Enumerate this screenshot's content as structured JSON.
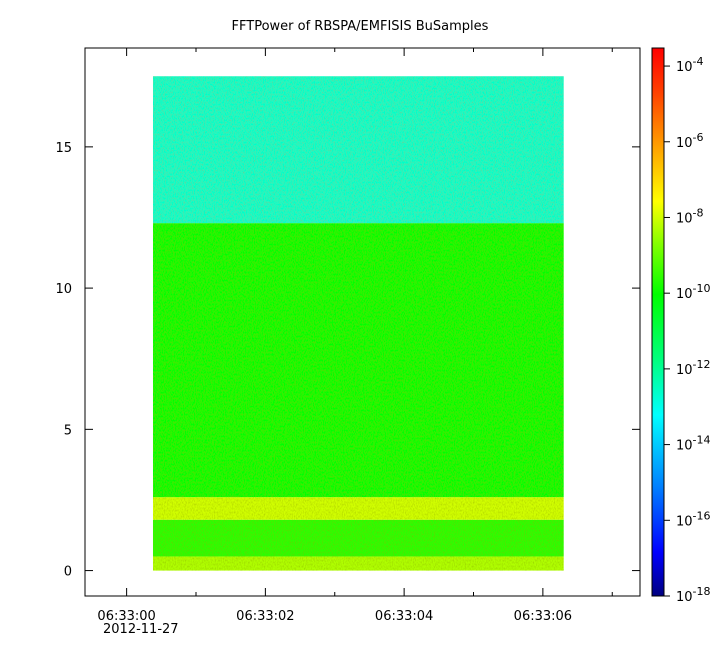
{
  "chart_data": {
    "type": "heatmap",
    "title": "FFTPower of RBSPA/EMFISIS  BuSamples",
    "xlabel": "",
    "ylabel": "",
    "x_ticks": [
      {
        "value": 0,
        "label": "06:33:00"
      },
      {
        "value": 2,
        "label": "06:33:02"
      },
      {
        "value": 4,
        "label": "06:33:04"
      },
      {
        "value": 6,
        "label": "06:33:06"
      }
    ],
    "x_minor_ticks": [
      1,
      3,
      5,
      7
    ],
    "x_date_label": "2012-11-27",
    "x_range_seconds": [
      -0.6,
      7.4
    ],
    "data_x_range_seconds": [
      0.38,
      6.3
    ],
    "y_ticks": [
      0,
      5,
      10,
      15
    ],
    "y_range": [
      -0.9,
      18.5
    ],
    "data_y_range": [
      0,
      17.5
    ],
    "z_scale": "log",
    "z_range": [
      1e-18,
      0.0003
    ],
    "colorbar_ticks": [
      {
        "base": "10",
        "exp": "-4",
        "value": 0.0001
      },
      {
        "base": "10",
        "exp": "-6",
        "value": 1e-06
      },
      {
        "base": "10",
        "exp": "-8",
        "value": 1e-08
      },
      {
        "base": "10",
        "exp": "-10",
        "value": 1e-10
      },
      {
        "base": "10",
        "exp": "-12",
        "value": 1e-12
      },
      {
        "base": "10",
        "exp": "-14",
        "value": 1e-14
      },
      {
        "base": "10",
        "exp": "-16",
        "value": 1e-16
      },
      {
        "base": "10",
        "exp": "-18",
        "value": 1e-18
      }
    ],
    "colormap": [
      "#000080",
      "#0000ff",
      "#0080ff",
      "#00ffff",
      "#00ff80",
      "#00ff00",
      "#80ff00",
      "#ffff00",
      "#ff8000",
      "#ff0000"
    ],
    "bands": [
      {
        "y_from": 0,
        "y_to": 0.5,
        "log10_power": -8.3
      },
      {
        "y_from": 0.5,
        "y_to": 1.8,
        "log10_power": -9.6
      },
      {
        "y_from": 1.8,
        "y_to": 2.6,
        "log10_power": -8.0
      },
      {
        "y_from": 2.6,
        "y_to": 12.3,
        "log10_power": -10.0
      },
      {
        "y_from": 12.3,
        "y_to": 17.5,
        "log10_power": -12.6
      }
    ],
    "grid": false
  }
}
